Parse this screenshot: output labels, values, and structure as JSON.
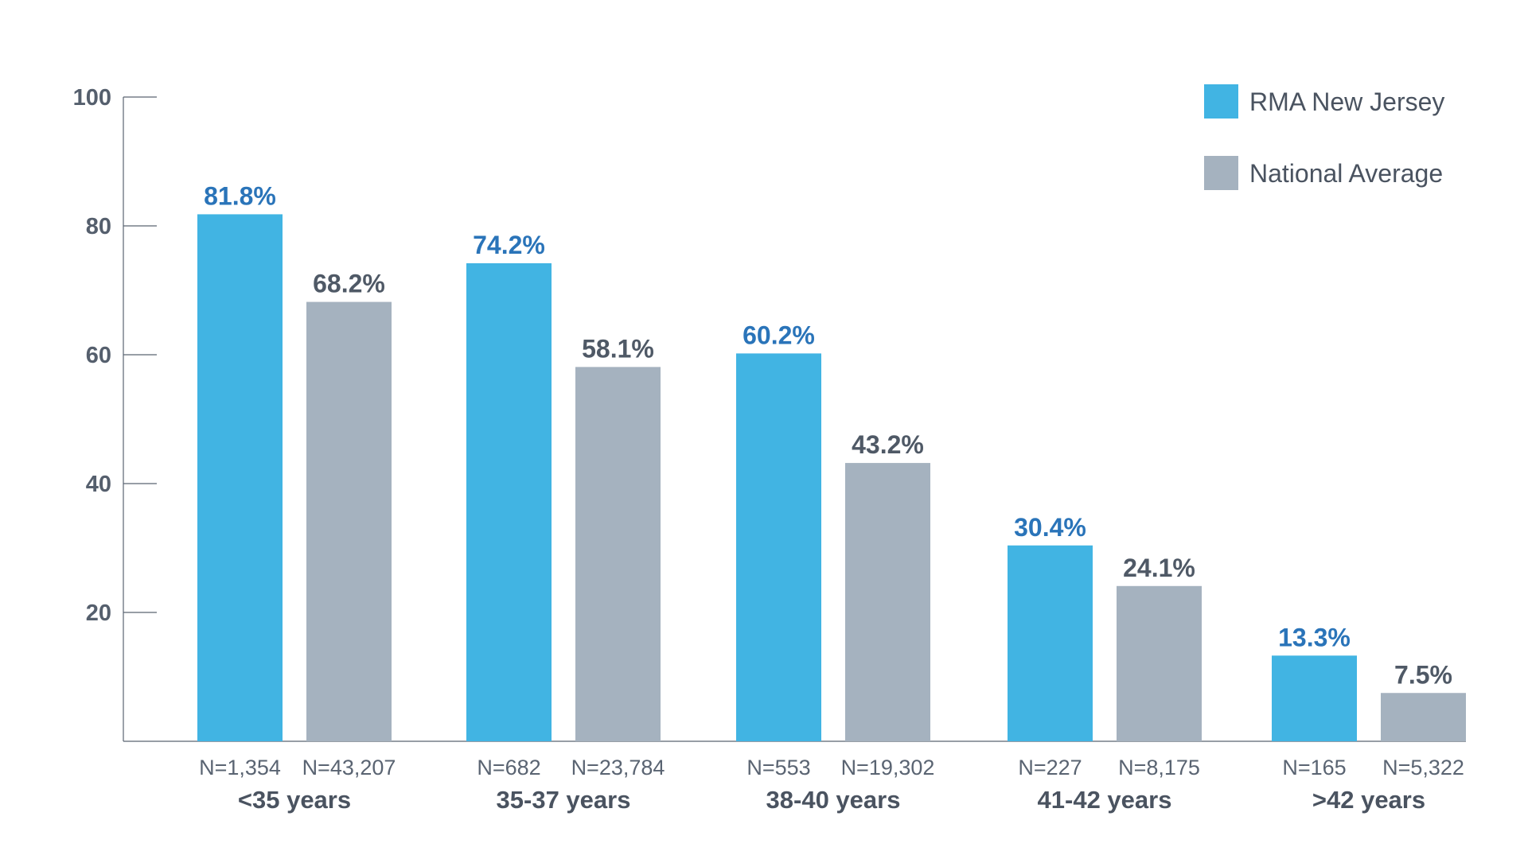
{
  "chart_data": {
    "type": "bar",
    "title": "",
    "xlabel": "",
    "ylabel": "",
    "ylim": [
      0,
      100
    ],
    "yticks": [
      20,
      40,
      60,
      80,
      100
    ],
    "categories": [
      "<35 years",
      "35-37 years",
      "38-40 years",
      "41-42 years",
      ">42 years"
    ],
    "series": [
      {
        "name": "RMA New Jersey",
        "color": "#41b4e3",
        "label_color": "#2a74b9",
        "values": [
          81.8,
          74.2,
          60.2,
          30.4,
          13.3
        ],
        "value_labels": [
          "81.8%",
          "74.2%",
          "60.2%",
          "30.4%",
          "13.3%"
        ],
        "n_labels": [
          "N=1,354",
          "N=682",
          "N=553",
          "N=227",
          "N=165"
        ]
      },
      {
        "name": "National Average",
        "color": "#a5b2bf",
        "label_color": "#4f5966",
        "values": [
          68.2,
          58.1,
          43.2,
          24.1,
          7.5
        ],
        "value_labels": [
          "68.2%",
          "58.1%",
          "43.2%",
          "24.1%",
          "7.5%"
        ],
        "n_labels": [
          "N=43,207",
          "N=23,784",
          "N=19,302",
          "N=8,175",
          "N=5,322"
        ]
      }
    ],
    "legend_position": "top-right",
    "grid": false
  }
}
